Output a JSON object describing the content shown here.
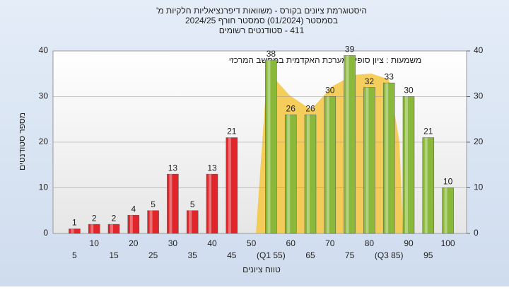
{
  "chart_data": {
    "type": "bar",
    "title": [
      "היסטוגרמת ציונים בקורס - משוואות דיפרנציאליות חלקיות מ'",
      "בסמסטר (01/2024) סמסטר חורף 2024/25",
      "411 - סטודנטים רשומים"
    ],
    "annotation": "משמעות : ציון סופי במערכת האקדמית במחשב המרכזי",
    "x_label": "טווח ציונים",
    "y_label": "מספר סטודנטים",
    "categories": [
      "5",
      "10",
      "15",
      "20",
      "25",
      "30",
      "35",
      "40",
      "45",
      "50",
      "(Q1 55)",
      "60",
      "65",
      "70",
      "75",
      "80",
      "(Q3 85)",
      "90",
      "95",
      "100"
    ],
    "values": [
      1,
      2,
      2,
      4,
      5,
      13,
      5,
      13,
      21,
      null,
      38,
      26,
      26,
      30,
      39,
      32,
      33,
      30,
      21,
      10
    ],
    "colors": [
      "#e0252b",
      "#e0252b",
      "#e0252b",
      "#e0252b",
      "#e0252b",
      "#e0252b",
      "#e0252b",
      "#e0252b",
      "#e0252b",
      "#e0252b",
      "#8ab83a",
      "#8ab83a",
      "#8ab83a",
      "#8ab83a",
      "#8ab83a",
      "#8ab83a",
      "#8ab83a",
      "#8ab83a",
      "#8ab83a",
      "#8ab83a"
    ],
    "ylim": [
      0,
      40
    ],
    "yticks": [
      0,
      10,
      20,
      30,
      40
    ],
    "y2lim": [
      0,
      40
    ],
    "y2ticks": [
      0,
      10,
      20,
      30,
      40
    ],
    "grid": true
  }
}
